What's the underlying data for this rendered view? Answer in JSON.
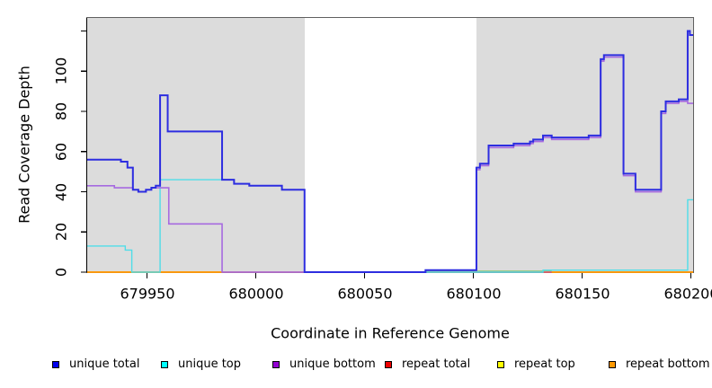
{
  "chart_data": {
    "type": "line",
    "step_interpolation": "step-after",
    "title": "",
    "xlabel": "Coordinate in Reference Genome",
    "ylabel": "Read Coverage Depth",
    "xlim": [
      679922.5,
      680201
    ],
    "ylim": [
      0,
      126.5
    ],
    "x_ticks": [
      679950,
      680000,
      680050,
      680100,
      680150,
      680200
    ],
    "x_tick_labels": [
      "679950",
      "680000",
      "680050",
      "680100",
      "680150",
      "680200"
    ],
    "y_ticks": [
      0,
      20,
      40,
      60,
      80,
      100,
      120
    ],
    "y_tick_labels": [
      "0",
      "20",
      "40",
      "60",
      "80",
      "100",
      ""
    ],
    "grid": false,
    "legend_position": "bottom",
    "background_color": "#ffffff",
    "band_color": "#dcdcdc",
    "box_color": "#5f5f5f",
    "axis_color": "#000000",
    "shaded_bands": [
      {
        "from": 679922.5,
        "to": 680022.4
      },
      {
        "from": 680101.4,
        "to": 680201
      }
    ],
    "baseline_blend_segments": [
      {
        "from": 680078,
        "to": 680136,
        "value": 0.5,
        "color": "#93c87e"
      }
    ],
    "legend": [
      {
        "label": "unique total",
        "color": "#0000ee"
      },
      {
        "label": "unique top",
        "color": "#00ffff"
      },
      {
        "label": "unique bottom",
        "color": "#9400d3"
      },
      {
        "label": "repeat total",
        "color": "#ee0000"
      },
      {
        "label": "repeat top",
        "color": "#ffff00"
      },
      {
        "label": "repeat bottom",
        "color": "#ff9800"
      }
    ],
    "series": [
      {
        "name": "repeat top",
        "color": "#ffff00",
        "line_color": "#f2e24a",
        "width": 1.2,
        "points": [
          [
            679922.5,
            0
          ]
        ]
      },
      {
        "name": "repeat total",
        "color": "#ee0000",
        "line_color": "#e8506e",
        "width": 1.6,
        "points": [
          [
            679922.5,
            0
          ]
        ]
      },
      {
        "name": "repeat bottom",
        "color": "#ff9800",
        "line_color": "#ff9d00",
        "width": 1.7,
        "points": [
          [
            679922.5,
            0
          ]
        ],
        "visible_segments": [
          [
            679922.5,
            679984.6
          ],
          [
            680136,
            680201
          ]
        ]
      },
      {
        "name": "unique top",
        "color": "#00ffff",
        "line_color": "#4fdde8",
        "width": 1.4,
        "points": [
          [
            679922.5,
            13
          ],
          [
            679940,
            11
          ],
          [
            679943,
            0
          ],
          [
            679956,
            46
          ],
          [
            679990,
            44
          ],
          [
            679997,
            43
          ],
          [
            680012,
            41
          ],
          [
            680022.4,
            0
          ],
          [
            680132,
            1
          ],
          [
            680198.5,
            36
          ]
        ]
      },
      {
        "name": "unique bottom",
        "color": "#9400d3",
        "line_color": "#a66ae0",
        "width": 1.6,
        "points": [
          [
            679922.5,
            43
          ],
          [
            679935,
            42
          ],
          [
            679943.5,
            41
          ],
          [
            679946,
            40
          ],
          [
            679949.5,
            41
          ],
          [
            679952,
            42
          ],
          [
            679960,
            24
          ],
          [
            679984.5,
            0
          ],
          [
            680078,
            1
          ],
          [
            680101.4,
            51
          ],
          [
            680103,
            53
          ],
          [
            680107,
            62
          ],
          [
            680118.5,
            63
          ],
          [
            680126,
            64
          ],
          [
            680127.5,
            65
          ],
          [
            680132,
            67
          ],
          [
            680136,
            66
          ],
          [
            680153,
            67
          ],
          [
            680158.5,
            105
          ],
          [
            680160,
            107
          ],
          [
            680169,
            48
          ],
          [
            680174.5,
            40
          ],
          [
            680186.3,
            79
          ],
          [
            680188.4,
            84
          ],
          [
            680194.4,
            85
          ],
          [
            680198.5,
            84
          ]
        ]
      },
      {
        "name": "unique total",
        "color": "#0000ee",
        "line_color": "#2d2de0",
        "width": 2,
        "points": [
          [
            679922.5,
            56
          ],
          [
            679938,
            55
          ],
          [
            679941,
            52
          ],
          [
            679943.5,
            41
          ],
          [
            679946,
            40
          ],
          [
            679949.5,
            41
          ],
          [
            679952,
            42
          ],
          [
            679954,
            43
          ],
          [
            679956,
            88
          ],
          [
            679959.5,
            70
          ],
          [
            679984.5,
            46
          ],
          [
            679990,
            44
          ],
          [
            679997,
            43
          ],
          [
            680012,
            41
          ],
          [
            680022.4,
            0
          ],
          [
            680078,
            1
          ],
          [
            680101.4,
            52
          ],
          [
            680103,
            54
          ],
          [
            680107,
            63
          ],
          [
            680118.5,
            64
          ],
          [
            680126,
            65
          ],
          [
            680127.5,
            66
          ],
          [
            680132,
            68
          ],
          [
            680136,
            67
          ],
          [
            680153,
            68
          ],
          [
            680158.5,
            106
          ],
          [
            680160,
            108
          ],
          [
            680169,
            49
          ],
          [
            680174.5,
            41
          ],
          [
            680186.3,
            80
          ],
          [
            680188.4,
            85
          ],
          [
            680194.4,
            86
          ],
          [
            680198.5,
            120
          ],
          [
            680199.5,
            118
          ]
        ]
      }
    ]
  }
}
